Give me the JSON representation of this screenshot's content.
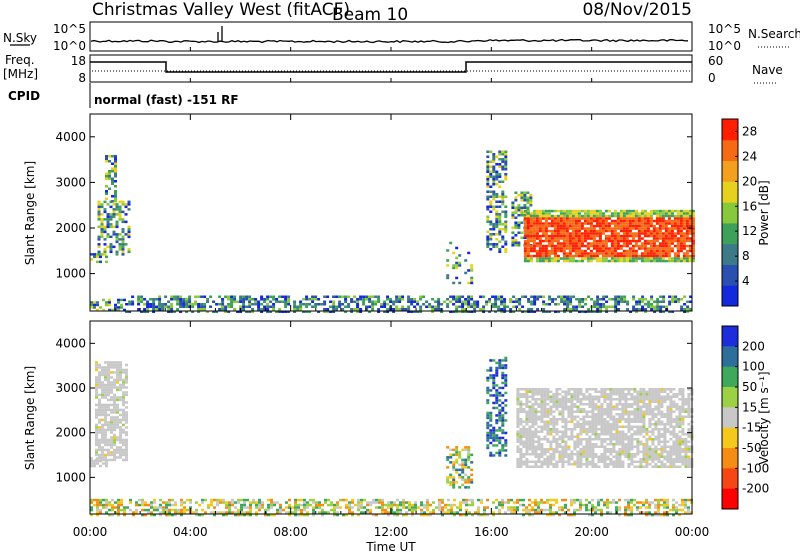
{
  "header": {
    "station": "Christmas Valley West (fitACF)",
    "beam": "Beam 10",
    "date": "08/Nov/2015"
  },
  "panels": {
    "nsky": {
      "label": "N.Sky",
      "y_ticks_left": [
        "10^5",
        "10^0"
      ],
      "y_ticks_right": [
        "10^5",
        "10^0"
      ],
      "right_label": "N.Search",
      "right_linestyle": "dotted"
    },
    "freq": {
      "label_line1": "Freq.",
      "label_line2": "[MHz]",
      "left_ticks": [
        "18",
        "8"
      ],
      "right_ticks": [
        "60",
        "0"
      ],
      "right_label": "Nave",
      "right_linestyle": "dotted",
      "segments": [
        {
          "start_hr": 0,
          "end_hr": 3,
          "freq_level": "high"
        },
        {
          "start_hr": 3,
          "end_hr": 15,
          "freq_level": "low"
        },
        {
          "start_hr": 15,
          "end_hr": 24,
          "freq_level": "high"
        }
      ]
    },
    "cpid": {
      "label": "CPID",
      "text": "normal (fast) -151 RF"
    }
  },
  "chart_data": [
    {
      "type": "heatmap",
      "name": "power",
      "ylabel": "Slant Range [km]",
      "yticks": [
        1000,
        2000,
        3000,
        4000
      ],
      "ylim": [
        180,
        4500
      ],
      "xlim": [
        0,
        24
      ],
      "colorbar": {
        "label": "Power [dB]",
        "ticks": [
          4,
          8,
          12,
          16,
          20,
          24,
          28
        ],
        "range": [
          0,
          30
        ],
        "colors": [
          "#1428dc",
          "#2a4fb0",
          "#3c7a8a",
          "#3fa05a",
          "#88c83c",
          "#e6d21e",
          "#f2a01e",
          "#f56a14",
          "#ff1e00"
        ]
      },
      "regions": [
        {
          "t_start": 0.0,
          "t_end": 1.4,
          "r_low": 180,
          "r_high": 450,
          "level": "mixed"
        },
        {
          "t_start": 1.4,
          "t_end": 24.0,
          "r_low": 180,
          "r_high": 520,
          "level": "mixed-low"
        },
        {
          "t_start": 0.0,
          "t_end": 0.6,
          "r_low": 1250,
          "r_high": 1450,
          "level": "medium"
        },
        {
          "t_start": 0.3,
          "t_end": 1.5,
          "r_low": 1400,
          "r_high": 2600,
          "level": "medium"
        },
        {
          "t_start": 0.6,
          "t_end": 1.0,
          "r_low": 2600,
          "r_high": 3600,
          "level": "medium"
        },
        {
          "t_start": 14.2,
          "t_end": 15.2,
          "r_low": 800,
          "r_high": 1700,
          "level": "sparse"
        },
        {
          "t_start": 15.8,
          "t_end": 16.6,
          "r_low": 1500,
          "r_high": 3700,
          "level": "medium"
        },
        {
          "t_start": 16.8,
          "t_end": 17.6,
          "r_low": 1600,
          "r_high": 2800,
          "level": "mixed"
        },
        {
          "t_start": 17.3,
          "t_end": 24.0,
          "r_low": 1250,
          "r_high": 2400,
          "level": "strong"
        }
      ]
    },
    {
      "type": "heatmap",
      "name": "velocity",
      "ylabel": "Slant Range [km]",
      "yticks": [
        1000,
        2000,
        3000,
        4000
      ],
      "ylim": [
        180,
        4500
      ],
      "xlim": [
        0,
        24
      ],
      "xticks": [
        "00:00",
        "04:00",
        "08:00",
        "12:00",
        "16:00",
        "20:00",
        "00:00"
      ],
      "xlabel": "Time UT",
      "colorbar": {
        "label": "Velocity [m s⁻¹]",
        "ticks": [
          "200",
          "100",
          "50",
          "15",
          "-15",
          "-50",
          "-100",
          "-200"
        ],
        "range": [
          -250,
          250
        ],
        "colors": [
          "#1e2ddc",
          "#2d6e9a",
          "#3fa85a",
          "#9cd045",
          "#c8c8c8",
          "#f5c81e",
          "#f58c14",
          "#f54614",
          "#ff0000"
        ]
      },
      "regions": [
        {
          "t_start": 0.0,
          "t_end": 24.0,
          "r_low": 180,
          "r_high": 520,
          "level": "mixed-neg"
        },
        {
          "t_start": 0.0,
          "t_end": 0.7,
          "r_low": 1250,
          "r_high": 1450,
          "level": "ground"
        },
        {
          "t_start": 0.2,
          "t_end": 1.5,
          "r_low": 1400,
          "r_high": 3600,
          "level": "ground"
        },
        {
          "t_start": 14.2,
          "t_end": 15.2,
          "r_low": 800,
          "r_high": 1700,
          "level": "mixed"
        },
        {
          "t_start": 15.8,
          "t_end": 16.6,
          "r_low": 1500,
          "r_high": 3700,
          "level": "pos"
        },
        {
          "t_start": 17.0,
          "t_end": 24.0,
          "r_low": 1250,
          "r_high": 3000,
          "level": "ground"
        }
      ]
    }
  ]
}
